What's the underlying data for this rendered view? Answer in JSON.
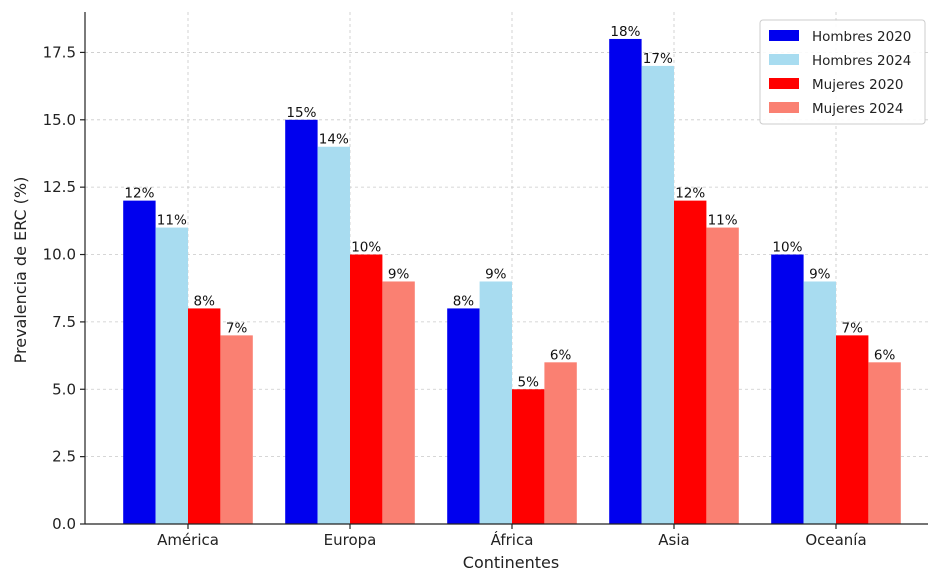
{
  "chart_data": {
    "type": "bar",
    "title": "",
    "xlabel": "Continentes",
    "ylabel": "Prevalencia de ERC (%)",
    "ylim": [
      0,
      19
    ],
    "yticks": [
      "0.0",
      "2.5",
      "5.0",
      "7.5",
      "10.0",
      "12.5",
      "15.0",
      "17.5"
    ],
    "grid": true,
    "legend_position": "top-right",
    "categories": [
      "América",
      "Europa",
      "África",
      "Asia",
      "Oceanía"
    ],
    "series": [
      {
        "name": "Hombres 2020",
        "color": "#0000ee",
        "values": [
          12,
          15,
          8,
          18,
          10
        ],
        "labels": [
          "12%",
          "15%",
          "8%",
          "18%",
          "10%"
        ]
      },
      {
        "name": "Hombres 2024",
        "color": "#a8dcf0",
        "values": [
          11,
          14,
          9,
          17,
          9
        ],
        "labels": [
          "11%",
          "14%",
          "9%",
          "17%",
          "9%"
        ]
      },
      {
        "name": "Mujeres 2020",
        "color": "#ff0000",
        "values": [
          8,
          10,
          5,
          12,
          7
        ],
        "labels": [
          "8%",
          "10%",
          "5%",
          "12%",
          "7%"
        ]
      },
      {
        "name": "Mujeres 2024",
        "color": "#fa8072",
        "values": [
          7,
          9,
          6,
          11,
          6
        ],
        "labels": [
          "7%",
          "9%",
          "6%",
          "11%",
          "6%"
        ]
      }
    ]
  }
}
